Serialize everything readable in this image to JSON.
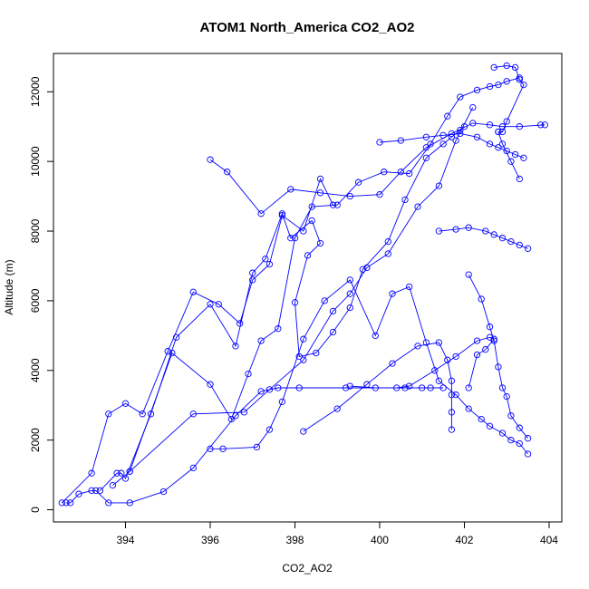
{
  "chart_data": {
    "type": "line",
    "title": "ATOM1 North_America CO2_AO2",
    "xlabel": "CO2_AO2",
    "ylabel": "Altitude (m)",
    "xlim": [
      392.3,
      404.3
    ],
    "ylim": [
      -350,
      13100
    ],
    "xticks": [
      394,
      396,
      398,
      400,
      402,
      404
    ],
    "yticks": [
      0,
      2000,
      4000,
      6000,
      8000,
      10000,
      12000
    ],
    "grid": false,
    "legend": "none",
    "color": "#0000FF",
    "marker": "open-circle",
    "series": [
      {
        "x": [
          392.6,
          392.7,
          392.9,
          393.2,
          393.3,
          393.6,
          394.1,
          394.9,
          395.6,
          396.6,
          397.2,
          397.6,
          398.1,
          399.2,
          401.0,
          401.5,
          401.2,
          400.6
        ],
        "y": [
          200,
          200,
          450,
          550,
          550,
          200,
          200,
          520,
          1200,
          2700,
          3400,
          3500,
          3500,
          3500,
          3500,
          3500,
          3500,
          3500
        ]
      },
      {
        "x": [
          392.5,
          393.2,
          393.6,
          394.0,
          394.4,
          395.0,
          395.6,
          396.2,
          396.7,
          397.0,
          397.4,
          397.7,
          398.2,
          398.6,
          398.9
        ],
        "y": [
          200,
          1050,
          2750,
          3050,
          2750,
          4550,
          6250,
          5900,
          5350,
          6600,
          7050,
          8450,
          8000,
          9500,
          8750
        ]
      },
      {
        "x": [
          393.4,
          393.8,
          393.9,
          394.0,
          394.6,
          395.2,
          396.0,
          396.6,
          397.0,
          397.3,
          397.7,
          397.9,
          398.4,
          398.6,
          398.3,
          398.0,
          398.1,
          398.5,
          398.9,
          399.3,
          399.6,
          400.2,
          400.6,
          401.1,
          401.5,
          401.7,
          401.9,
          402.0
        ],
        "y": [
          550,
          1050,
          1050,
          900,
          2750,
          4950,
          5900,
          4700,
          6800,
          7200,
          8500,
          7800,
          8300,
          7650,
          7300,
          5950,
          4400,
          4500,
          5100,
          5800,
          6900,
          7700,
          8900,
          10100,
          10500,
          10700,
          10900,
          11000
        ]
      },
      {
        "x": [
          393.7,
          394.1,
          395.1,
          396.0,
          396.5,
          396.9,
          397.2,
          397.6,
          398.0,
          398.4,
          399.0,
          399.5,
          400.1,
          400.7,
          401.2,
          401.6,
          401.9,
          402.3,
          402.6,
          402.8,
          403.0,
          403.3
        ],
        "y": [
          700,
          1100,
          4500,
          3600,
          2600,
          3900,
          4850,
          5200,
          7800,
          8700,
          8750,
          9400,
          9700,
          9650,
          10500,
          11300,
          11850,
          12050,
          12150,
          12200,
          12300,
          12400
        ]
      },
      {
        "x": [
          394.1,
          395.6,
          396.8,
          397.4,
          398.2,
          398.9,
          399.3,
          399.7,
          400.2,
          400.9,
          401.4,
          401.8,
          402.2
        ],
        "y": [
          1100,
          2750,
          2800,
          3450,
          4300,
          5700,
          6200,
          6950,
          7350,
          8700,
          9300,
          10600,
          11550
        ]
      },
      {
        "x": [
          396.0,
          396.3,
          397.1,
          397.4,
          397.7,
          398.2,
          398.7,
          399.3,
          399.9,
          400.3,
          400.7,
          401.1,
          401.4,
          401.8,
          402.1,
          402.4,
          402.6,
          402.9,
          403.1,
          403.3,
          403.5
        ],
        "y": [
          1750,
          1750,
          1800,
          2300,
          3100,
          4900,
          6000,
          6600,
          5000,
          6200,
          6400,
          4800,
          3700,
          3300,
          2900,
          2600,
          2400,
          2200,
          2000,
          1900,
          1600
        ]
      },
      {
        "x": [
          396.0,
          396.4,
          397.2,
          397.9,
          398.6,
          399.3,
          400.0,
          400.5,
          401.1,
          401.7,
          402.2,
          402.6,
          402.9,
          403.3,
          403.9,
          403.8
        ],
        "y": [
          10050,
          9700,
          8500,
          9200,
          9100,
          9000,
          9050,
          9700,
          10400,
          10800,
          11100,
          11050,
          11000,
          11000,
          11050,
          11050
        ]
      },
      {
        "x": [
          398.2,
          399.0,
          399.7,
          400.3,
          400.9,
          401.4,
          401.6,
          401.7,
          401.7,
          401.7,
          401.7
        ],
        "y": [
          2250,
          2900,
          3600,
          4200,
          4700,
          4800,
          4300,
          3700,
          3300,
          2800,
          2300
        ]
      },
      {
        "x": [
          399.3,
          399.9,
          400.4,
          400.7,
          401.3,
          401.8,
          402.3,
          402.6,
          402.7,
          402.5,
          402.3,
          402.1
        ],
        "y": [
          3550,
          3500,
          3500,
          3550,
          4000,
          4400,
          4850,
          4950,
          4900,
          4600,
          4450,
          3500
        ]
      },
      {
        "x": [
          400.0,
          400.5,
          401.1,
          401.5,
          401.9,
          402.3,
          402.6,
          402.8,
          403.0,
          403.2,
          403.4
        ],
        "y": [
          10550,
          10600,
          10700,
          10750,
          10800,
          10700,
          10500,
          10400,
          10300,
          10200,
          10100
        ]
      },
      {
        "x": [
          401.4,
          401.8,
          402.1,
          402.5,
          402.7,
          402.9,
          403.1,
          403.3,
          403.5
        ],
        "y": [
          8000,
          8050,
          8100,
          8000,
          7900,
          7800,
          7700,
          7600,
          7500
        ]
      },
      {
        "x": [
          402.1,
          402.4,
          402.6,
          402.7,
          402.8,
          402.9,
          403.0,
          403.1,
          403.3,
          403.5
        ],
        "y": [
          6750,
          6050,
          5250,
          4850,
          4100,
          3500,
          3250,
          2700,
          2350,
          2050
        ]
      },
      {
        "x": [
          402.7,
          403.0,
          403.2,
          403.3,
          403.4,
          403.0,
          402.9,
          402.8,
          402.8,
          402.9,
          403.1,
          403.3
        ],
        "y": [
          12700,
          12750,
          12700,
          12350,
          12200,
          11150,
          10850,
          10850,
          10850,
          10500,
          10000,
          9500
        ]
      }
    ]
  }
}
